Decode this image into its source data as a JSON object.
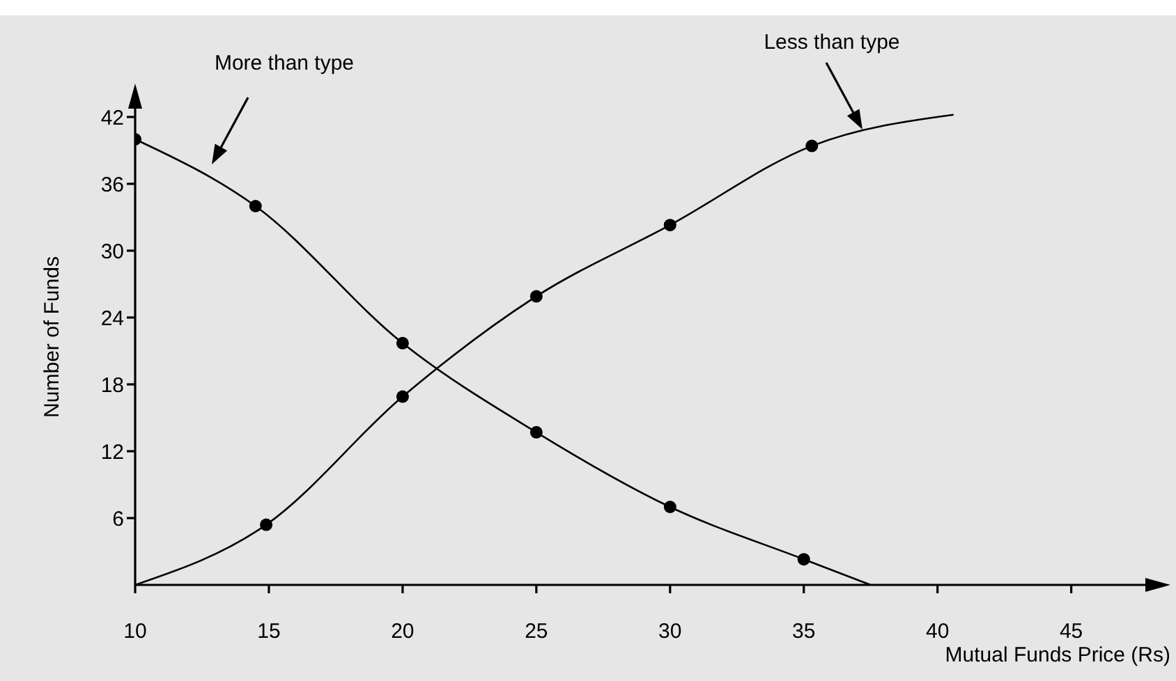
{
  "chart_data": {
    "type": "line",
    "xlabel": "Mutual Funds Price (Rs)",
    "ylabel": "Number of Funds",
    "xlim": [
      10,
      48.5
    ],
    "xticks": [
      10,
      15,
      20,
      25,
      30,
      35,
      40,
      45
    ],
    "ylim": [
      0,
      44.5
    ],
    "yticks": [
      6,
      12,
      18,
      24,
      30,
      36,
      42
    ],
    "grid": false,
    "legend": false,
    "series": [
      {
        "color": "#000000",
        "marker": "none",
        "x": [
          10,
          14.5,
          20,
          25,
          30,
          35,
          37.5
        ],
        "values": [
          40,
          34,
          21.7,
          13.7,
          7,
          2.3,
          0
        ]
      },
      {
        "color": "#000000",
        "marker": "none",
        "x": [
          10,
          14.9,
          20,
          25,
          30,
          35.3,
          40.6
        ],
        "values": [
          0,
          5.4,
          16.9,
          25.9,
          32.3,
          39.4,
          42.2
        ]
      },
      {
        "type": "scatter",
        "color": "#000000",
        "marker": "circle",
        "x": [
          10,
          14.5,
          20,
          25,
          30,
          35
        ],
        "values": [
          40,
          34,
          21.7,
          13.7,
          7,
          2.3
        ]
      },
      {
        "type": "scatter",
        "color": "#000000",
        "marker": "circle",
        "x": [
          14.9,
          20,
          25,
          30,
          35.3
        ],
        "values": [
          5.4,
          16.9,
          25.9,
          32.3,
          39.4
        ]
      }
    ],
    "annotations": [
      "More than type",
      "Less than type"
    ]
  }
}
